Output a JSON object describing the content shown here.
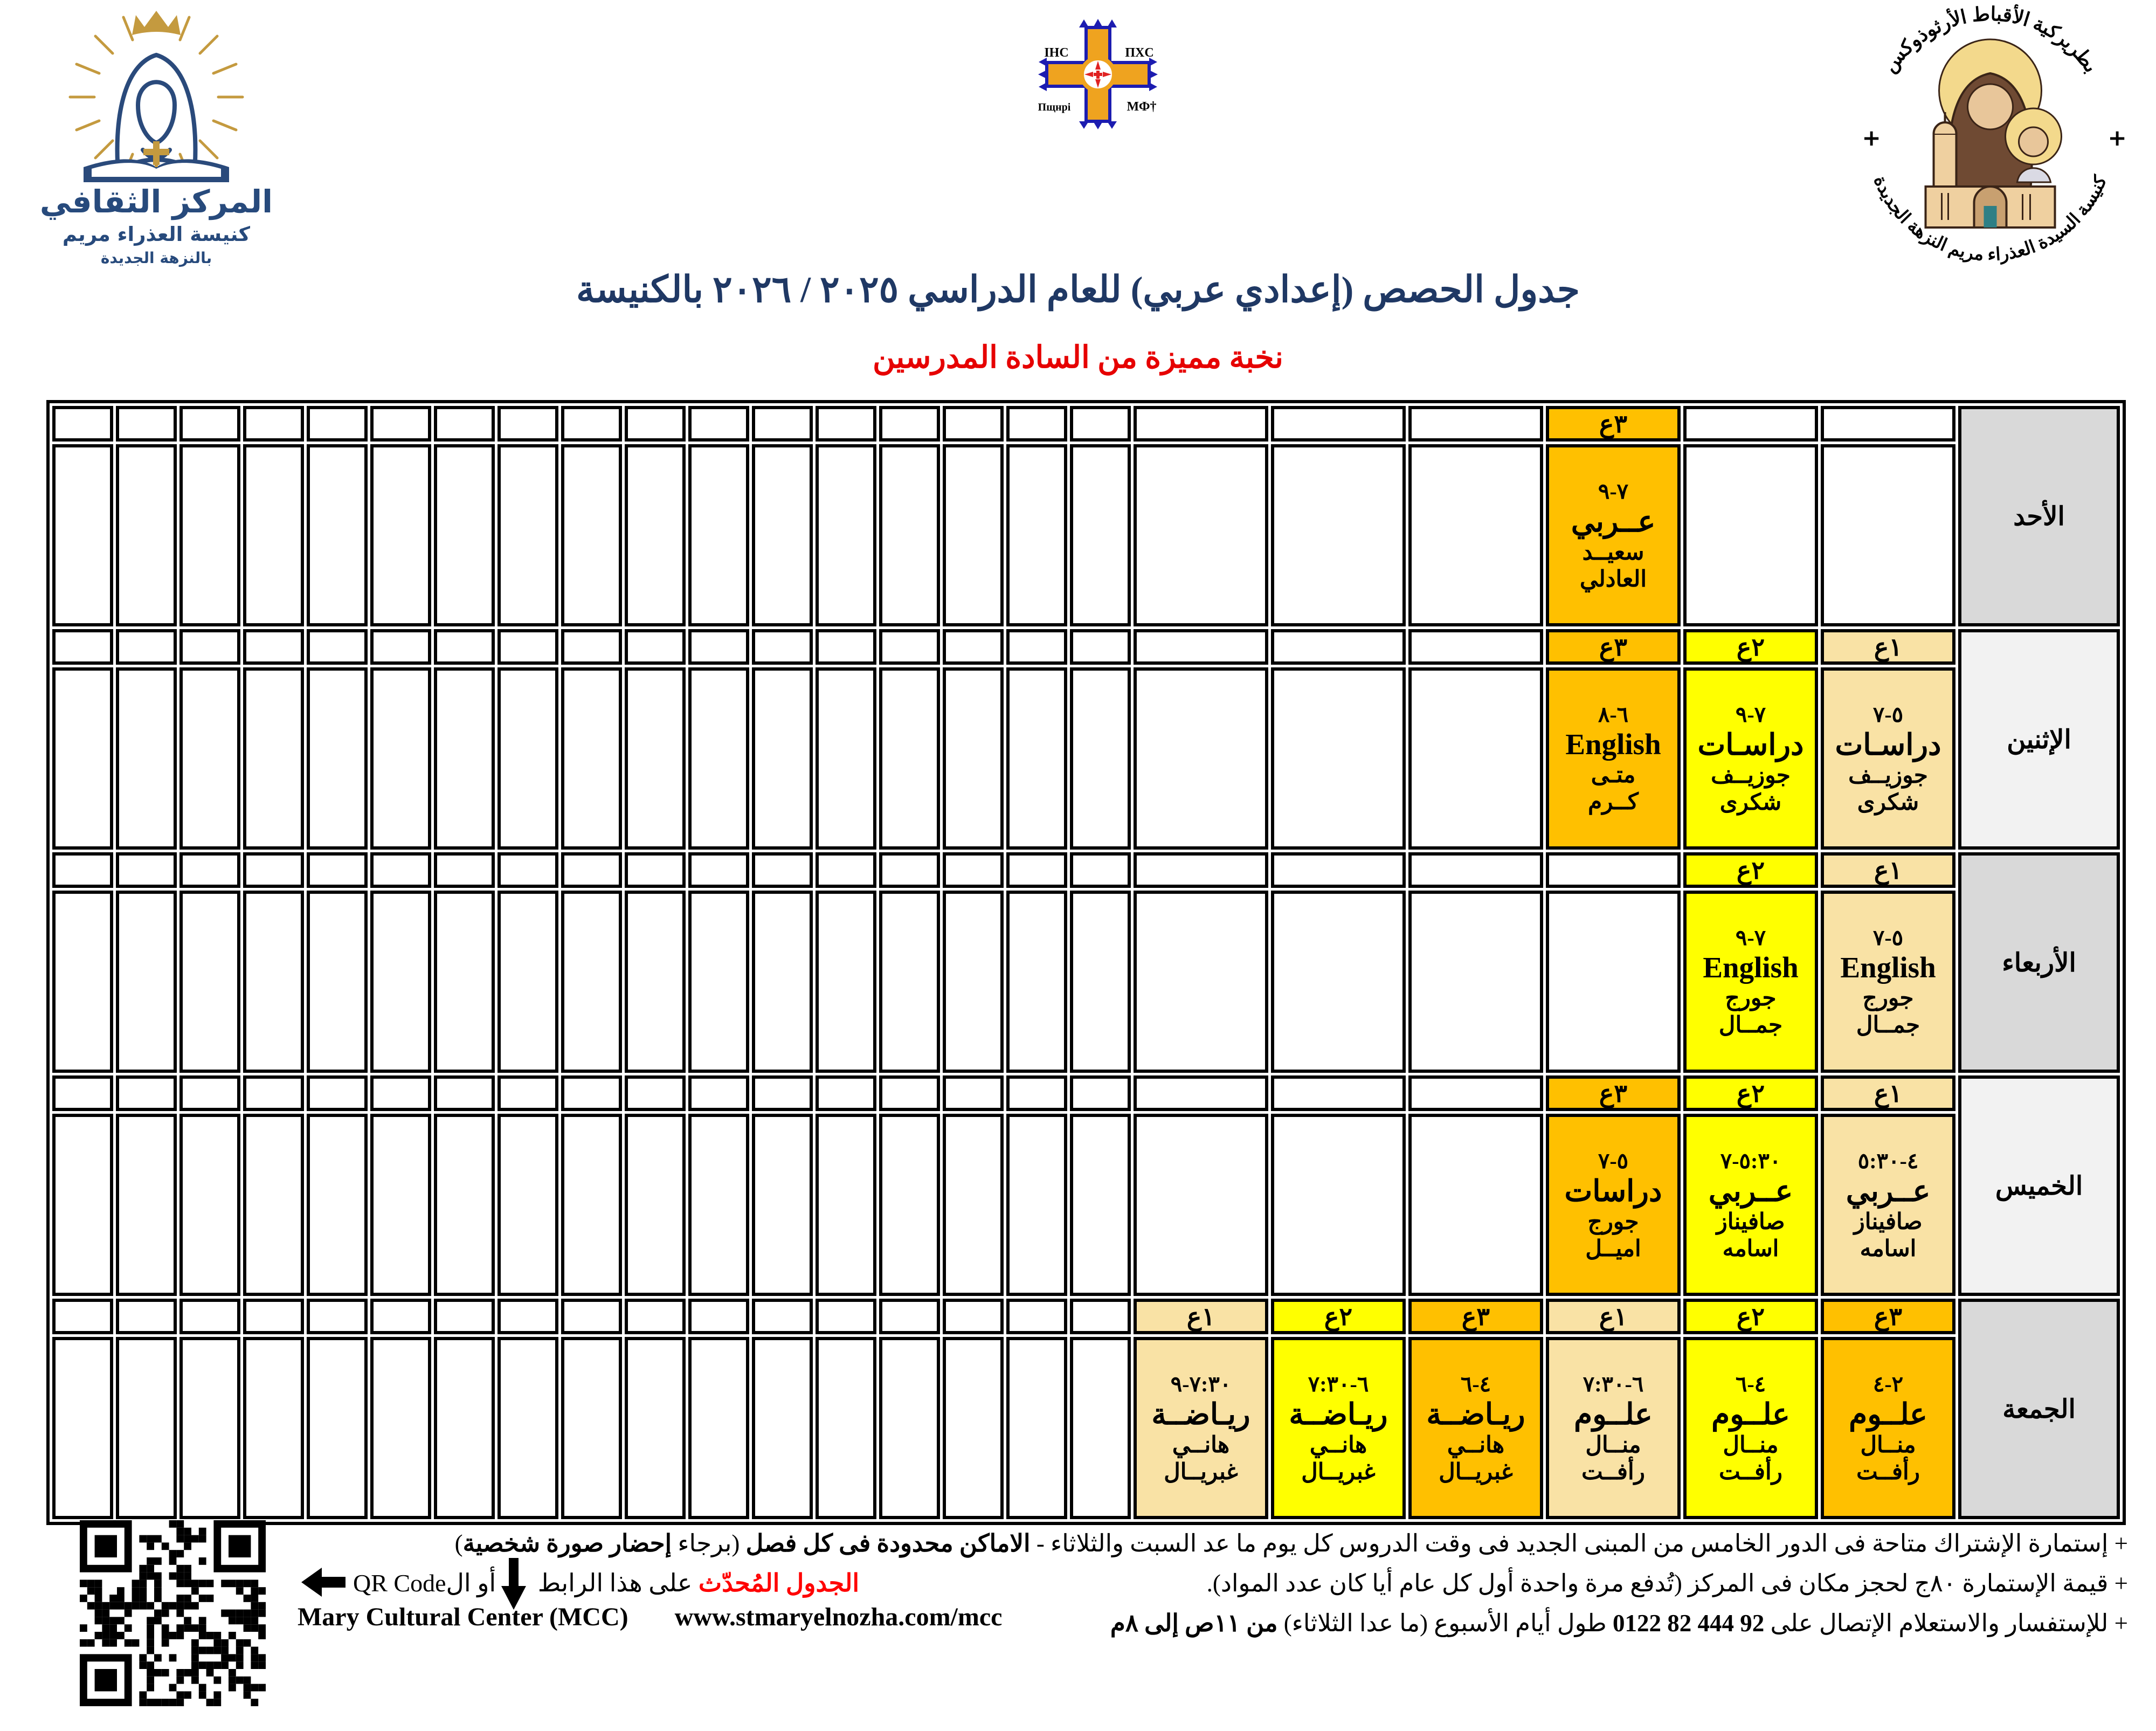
{
  "header": {
    "left_logo": {
      "title": "المركز الثقافي",
      "subtitle": "كنيسة العذراء مريم",
      "subtitle2": "بالنزهة الجديدة"
    },
    "center_logo": {
      "labels": [
        "IHC",
        "ΠXC",
        "Пщнрі",
        "МФ†"
      ]
    },
    "right_logo": {
      "arc_top": "بطريركية الأقباط الأرثوذوكس",
      "arc_bottom": "كنيسة السيدة العذراء مريم النزهة الجديدة"
    }
  },
  "title": {
    "text": "جدول الحصص (إعدادي عربي) للعام الدراسي ٢٠٢٥ / ٢٠٢٦ بالكنيسة",
    "color": "#1F3864"
  },
  "subtitle": {
    "text": "نخبة مميزة من السادة المدرسين",
    "color": "#E60000"
  },
  "grade_colors": {
    "g1": "#F9E2A5",
    "g2": "#FFFF00",
    "g3": "#FFC000"
  },
  "day_colors": {
    "dark": "#D9D9D9",
    "light": "#F2F2F2"
  },
  "schedule": {
    "days": [
      {
        "name": "الأحد",
        "shade": "dark",
        "slots": [
          null,
          null,
          {
            "grade": "٣ع",
            "level": "g3",
            "time": "٩-٧",
            "subject": "عــربي",
            "teacher1": "سعيــد",
            "teacher2": "العادلي"
          },
          null,
          null,
          null
        ]
      },
      {
        "name": "الإثنين",
        "shade": "light",
        "slots": [
          {
            "grade": "١ع",
            "level": "g1",
            "time": "٧-٥",
            "subject": "دراسـات",
            "teacher1": "جوزيــف",
            "teacher2": "شكرى"
          },
          {
            "grade": "٢ع",
            "level": "g2",
            "time": "٩-٧",
            "subject": "دراسـات",
            "teacher1": "جوزيــف",
            "teacher2": "شكرى"
          },
          {
            "grade": "٣ع",
            "level": "g3",
            "time": "٨-٦",
            "subject": "English",
            "teacher1": "متـى",
            "teacher2": "كــرم"
          },
          null,
          null,
          null
        ]
      },
      {
        "name": "الأربعاء",
        "shade": "dark",
        "slots": [
          {
            "grade": "١ع",
            "level": "g1",
            "time": "٧-٥",
            "subject": "English",
            "teacher1": "جورج",
            "teacher2": "جمــال"
          },
          {
            "grade": "٢ع",
            "level": "g2",
            "time": "٩-٧",
            "subject": "English",
            "teacher1": "جورج",
            "teacher2": "جمــال"
          },
          null,
          null,
          null,
          null
        ]
      },
      {
        "name": "الخميس",
        "shade": "light",
        "slots": [
          {
            "grade": "١ع",
            "level": "g1",
            "time": "٥:٣٠-٤",
            "subject": "عــربي",
            "teacher1": "صافيناز",
            "teacher2": "اسامه"
          },
          {
            "grade": "٢ع",
            "level": "g2",
            "time": "٧-٥:٣٠",
            "subject": "عــربي",
            "teacher1": "صافيناز",
            "teacher2": "اسامه"
          },
          {
            "grade": "٣ع",
            "level": "g3",
            "time": "٧-٥",
            "subject": "دراسات",
            "teacher1": "جورج",
            "teacher2": "اميــل"
          },
          null,
          null,
          null
        ]
      },
      {
        "name": "الجمعة",
        "shade": "dark",
        "slots": [
          {
            "grade": "٣ع",
            "level": "g3",
            "time": "٤-٢",
            "subject": "علــوم",
            "teacher1": "منــال",
            "teacher2": "رأفــت"
          },
          {
            "grade": "٢ع",
            "level": "g2",
            "time": "٦-٤",
            "subject": "علــوم",
            "teacher1": "منــال",
            "teacher2": "رأفــت"
          },
          {
            "grade": "١ع",
            "level": "g1",
            "time": "٧:٣٠-٦",
            "subject": "علــوم",
            "teacher1": "منــال",
            "teacher2": "رأفــت"
          },
          {
            "grade": "٣ع",
            "level": "g3",
            "time": "٦-٤",
            "subject": "ريـاضــة",
            "teacher1": "هانــي",
            "teacher2": "غبريــال"
          },
          {
            "grade": "٢ع",
            "level": "g2",
            "time": "٧:٣٠-٦",
            "subject": "ريـاضــة",
            "teacher1": "هانــي",
            "teacher2": "غبريــال"
          },
          {
            "grade": "١ع",
            "level": "g1",
            "time": "٩-٧:٣٠",
            "subject": "ريـاضــة",
            "teacher1": "هانــي",
            "teacher2": "غبريــال"
          }
        ]
      }
    ]
  },
  "notes": {
    "line1": [
      {
        "text": "+ إستمارة الإشتراك متاحة فى الدور الخامس من المبنى الجديد فى وقت الدروس كل يوم ما عد السبت والثلاثاء - ",
        "bold": false
      },
      {
        "text": "الاماكن محدودة فى كل فصل",
        "bold": true
      },
      {
        "text": " (برجاء ",
        "bold": false
      },
      {
        "text": "إحضار صورة شخصية",
        "bold": true
      },
      {
        "text": ")",
        "bold": false
      }
    ],
    "line2": [
      {
        "text": "+ قيمة الإستمارة ٨٠ج لحجز مكان فى المركز (تُدفع مرة واحدة أول كل عام أيا كان عدد المواد).",
        "bold": false
      }
    ],
    "line3": [
      {
        "text": "+ للإستفسار والاستعلام الإتصال على ",
        "bold": false
      },
      {
        "text": "0122 82 444 92",
        "bold": true,
        "ltr": true
      },
      {
        "text": " طول أيام الأسبوع (ما عدا الثلاثاء) ",
        "bold": false
      },
      {
        "text": "من ١١ص إلى ٨م",
        "bold": true
      }
    ],
    "updated_schedule": [
      {
        "text": "الجدول المُحدّث",
        "bold": true,
        "color": "#FF0000"
      },
      {
        "text": " على هذا الرابط ",
        "bold": false
      },
      {
        "icon": "down-arrow"
      },
      {
        "text": "أو ال",
        "bold": false
      },
      {
        "text": "QR Code",
        "bold": false,
        "ltr": true
      },
      {
        "icon": "left-arrow"
      }
    ]
  },
  "footer": {
    "org_en": "Mary Cultural Center (MCC)",
    "url": "www.stmaryelnozha.com/mcc"
  }
}
